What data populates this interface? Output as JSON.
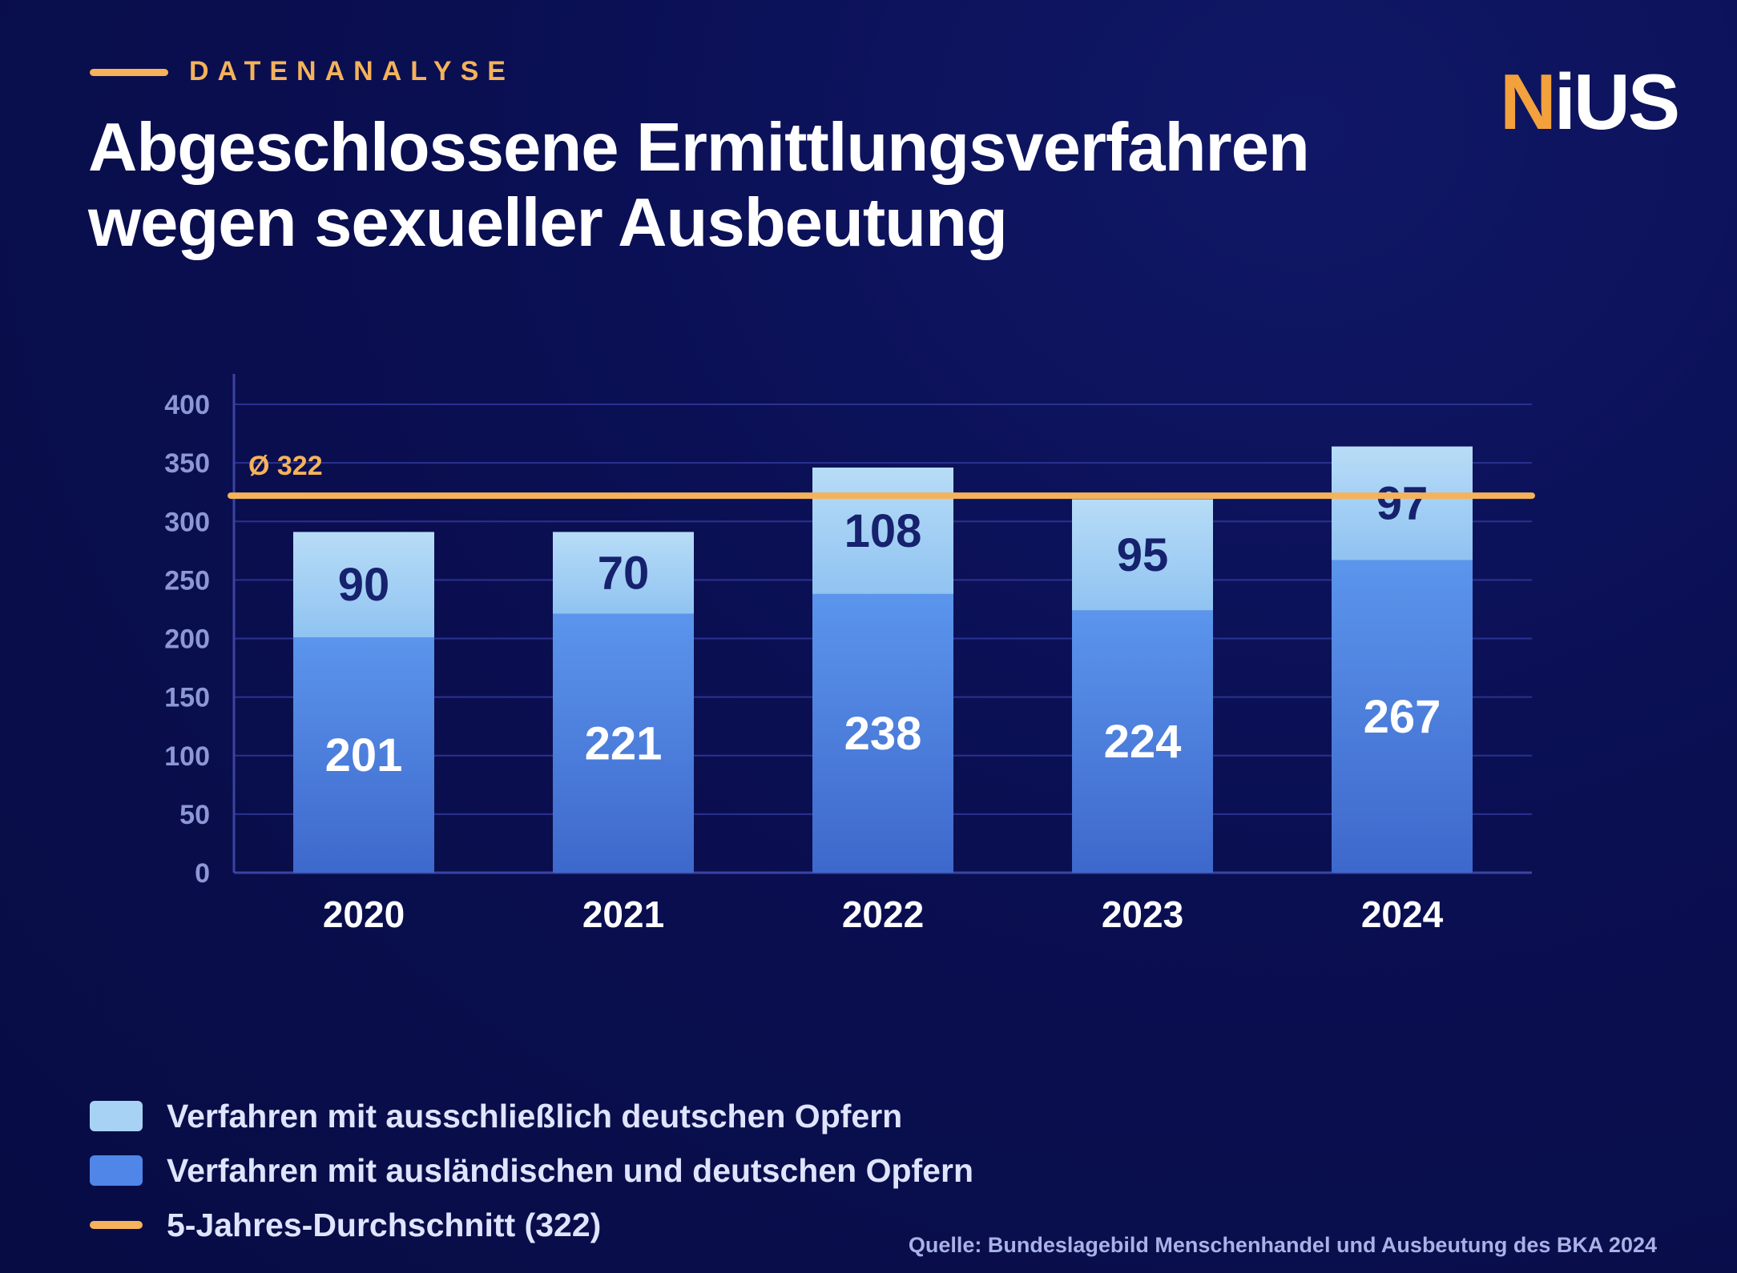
{
  "kicker": "DATENANALYSE",
  "title_line1": "Abgeschlossene Ermittlungsverfahren",
  "title_line2": "wegen sexueller Ausbeutung",
  "logo": {
    "n": "N",
    "rest": "iUS"
  },
  "chart_data": {
    "type": "bar",
    "stacked": true,
    "categories": [
      "2020",
      "2021",
      "2022",
      "2023",
      "2024"
    ],
    "series": [
      {
        "name": "Verfahren mit ausländischen und deutschen Opfern",
        "values": [
          201,
          221,
          238,
          224,
          267
        ],
        "color": "#4f86e8"
      },
      {
        "name": "Verfahren mit ausschließlich deutschen Opfern",
        "values": [
          90,
          70,
          108,
          95,
          97
        ],
        "color": "#a8d2f4"
      }
    ],
    "reference_line": {
      "value": 322,
      "label": "Ø 322",
      "color": "#f5b25a"
    },
    "ylim": [
      0,
      400
    ],
    "yticks": [
      0,
      50,
      100,
      150,
      200,
      250,
      300,
      350,
      400
    ],
    "grid": true
  },
  "legend": [
    {
      "label": "Verfahren mit ausschließlich deutschen Opfern",
      "color": "#a8d2f4",
      "kind": "box"
    },
    {
      "label": "Verfahren mit ausländischen und deutschen Opfern",
      "color": "#4f86e8",
      "kind": "box"
    },
    {
      "label": "5-Jahres-Durchschnitt (322)",
      "color": "#f5b25a",
      "kind": "line"
    }
  ],
  "source": "Quelle: Bundeslagebild Menschenhandel und Ausbeutung des BKA 2024"
}
